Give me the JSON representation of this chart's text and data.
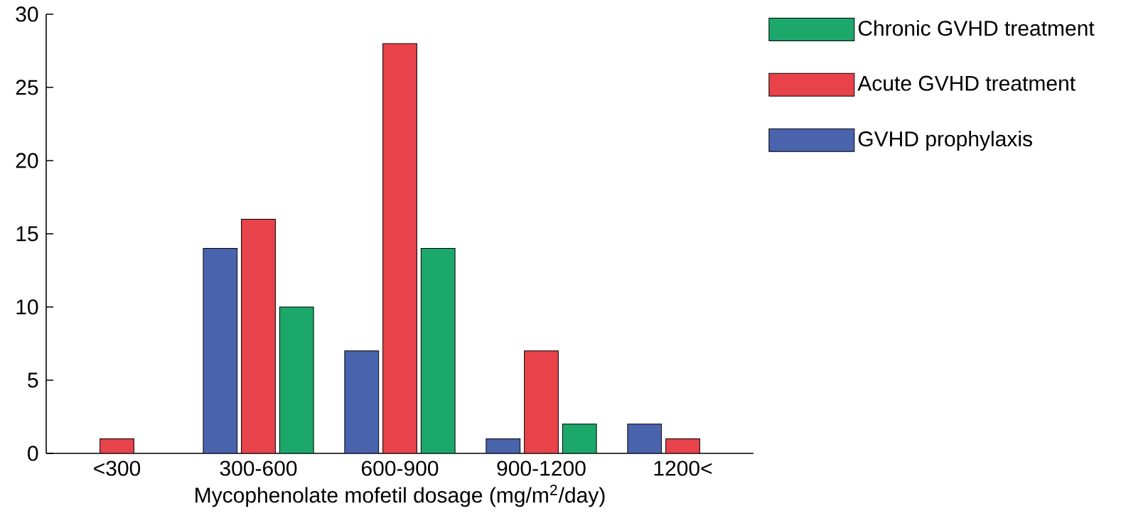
{
  "chart_data": {
    "type": "bar",
    "xlabel": "Mycophenolate mofetil dosage (mg/m$^{2}$/day)",
    "categories": [
      "<300",
      "300-600",
      "600-900",
      "900-1200",
      "1200<"
    ],
    "series": [
      {
        "name": "GVHD prophylaxis",
        "color": "#4a63ad",
        "values": [
          null,
          14,
          7,
          1,
          2
        ]
      },
      {
        "name": "Acute GVHD treatment",
        "color": "#e8424b",
        "values": [
          1,
          16,
          28,
          7,
          1
        ]
      },
      {
        "name": "Chronic GVHD treatment",
        "color": "#1ba86a",
        "values": [
          null,
          10,
          14,
          2,
          null
        ]
      }
    ],
    "ylim": [
      0,
      30
    ],
    "yticks": [
      0,
      5,
      10,
      15,
      20,
      25,
      30
    ],
    "legend": "top right",
    "grid": false
  }
}
